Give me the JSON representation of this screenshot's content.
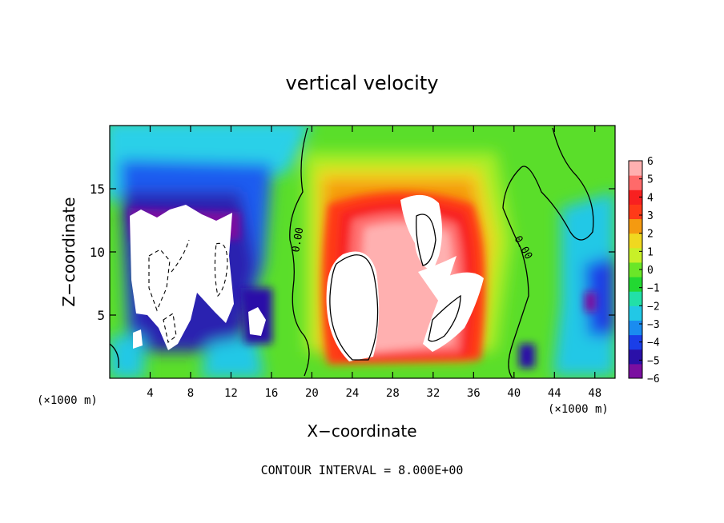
{
  "chart_data": {
    "type": "heatmap",
    "title": "vertical velocity",
    "xlabel": "X−coordinate",
    "ylabel": "Z−coordinate",
    "x_units_left": "(×1000 m)",
    "x_units_right": "(×1000 m)",
    "footer": "CONTOUR INTERVAL = 8.000E+00",
    "xlim": [
      0,
      50
    ],
    "ylim": [
      0,
      20
    ],
    "x_ticks": [
      4,
      8,
      12,
      16,
      20,
      24,
      28,
      32,
      36,
      40,
      44,
      48
    ],
    "y_ticks": [
      5,
      10,
      15
    ],
    "contour_labels": [
      "0.00",
      "0.00"
    ],
    "colorbar": {
      "ticks": [
        "6",
        "5",
        "4",
        "3",
        "2",
        "1",
        "0",
        "−1",
        "−2",
        "−3",
        "−4",
        "−5",
        "−6"
      ],
      "range": [
        -6,
        6
      ],
      "colors": [
        "#7a0fa0",
        "#2a10a8",
        "#1a3ee8",
        "#1a8cf0",
        "#22c8e6",
        "#22e0a8",
        "#22d832",
        "#6ae628",
        "#c8f028",
        "#f0d820",
        "#f59a10",
        "#ff3a18",
        "#f82020",
        "#ff6a6a",
        "#ffb0b0"
      ]
    }
  }
}
